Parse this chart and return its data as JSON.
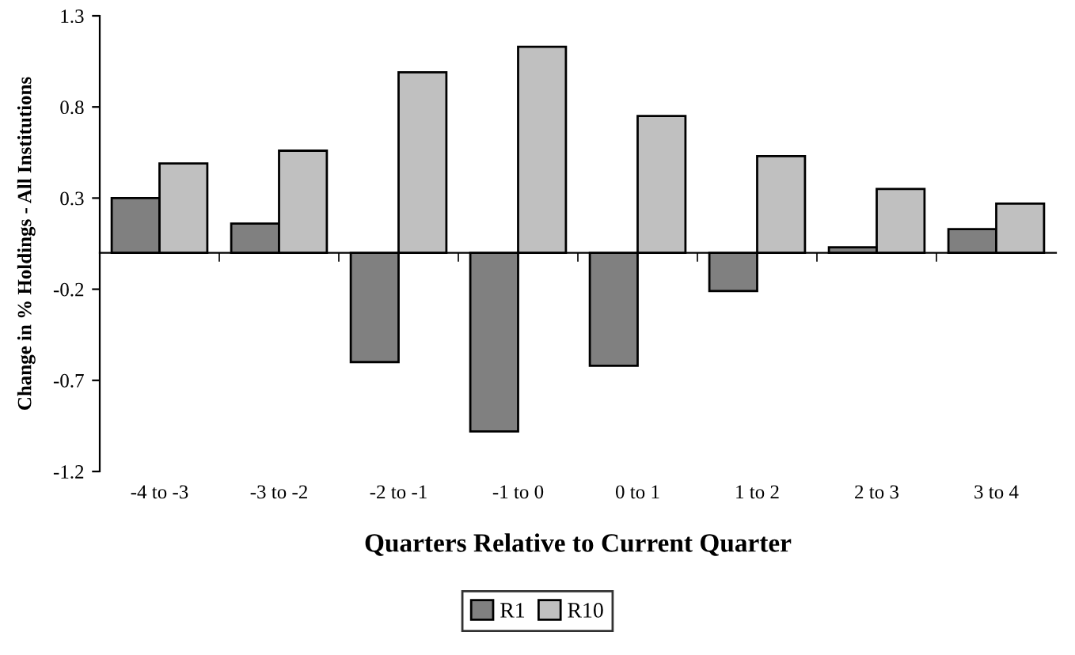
{
  "chart_data": {
    "type": "bar",
    "xlabel": "Quarters Relative to Current Quarter",
    "ylabel": "Change in % Holdings - All Institutions",
    "categories": [
      "-4 to -3",
      "-3 to -2",
      "-2 to -1",
      "-1 to 0",
      "0 to 1",
      "1 to 2",
      "2 to 3",
      "3 to 4"
    ],
    "series": [
      {
        "name": "R1",
        "color": "#808080",
        "values": [
          0.3,
          0.16,
          -0.6,
          -0.98,
          -0.62,
          -0.21,
          0.03,
          0.13
        ]
      },
      {
        "name": "R10",
        "color": "#c0c0c0",
        "values": [
          0.49,
          0.56,
          0.99,
          1.13,
          0.75,
          0.53,
          0.35,
          0.27
        ]
      }
    ],
    "ylim": [
      -1.2,
      1.3
    ],
    "yticks": [
      -1.2,
      -0.7,
      -0.2,
      0.3,
      0.8,
      1.3
    ],
    "grid": false,
    "legend": "bottom"
  }
}
